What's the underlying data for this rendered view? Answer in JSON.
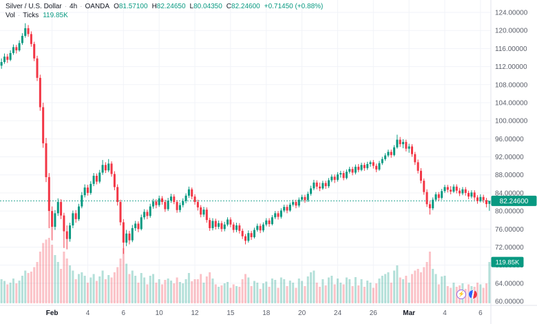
{
  "header": {
    "symbol": "Silver / U.S. Dollar",
    "dot": "·",
    "interval": "4h",
    "exchange": "OANDA",
    "o_label": "O",
    "h_label": "H",
    "l_label": "L",
    "c_label": "C",
    "open": "81.57100",
    "high": "82.24650",
    "low": "80.04350",
    "close": "82.24600",
    "change": "+0.71450 (+0.88%)",
    "vol_label": "Vol",
    "vol_type": "Ticks",
    "vol_value": "119.85K"
  },
  "colors": {
    "up": "#089981",
    "down": "#F23645",
    "vol_up": "rgba(8,153,129,0.30)",
    "vol_down": "rgba(242,54,69,0.30)",
    "grid": "#F1F3F8",
    "axis_line": "#E0E3EB",
    "axis_text": "#5A5E69",
    "text": "#131722",
    "badge": "#089981",
    "badge_text": "#FFFFFF"
  },
  "chart_data": {
    "type": "candlestick",
    "title": "Silver / U.S. Dollar · 4h · OANDA",
    "legend_ohlc": {
      "open": "81.57100",
      "high": "82.24650",
      "low": "80.04350",
      "close": "82.24600",
      "change": "+0.71450 (+0.88%)"
    },
    "price_axis": {
      "min": 60,
      "max": 124,
      "tick_step": 4,
      "ticks": [
        "124.00000",
        "120.00000",
        "116.00000",
        "112.00000",
        "108.00000",
        "104.00000",
        "100.00000",
        "96.00000",
        "92.00000",
        "88.00000",
        "84.00000",
        "80.00000",
        "76.00000",
        "72.00000",
        "68.00000",
        "64.00000",
        "60.00000"
      ]
    },
    "time_axis": {
      "labels": [
        {
          "text": "Feb",
          "i": 17,
          "major": true
        },
        {
          "text": "4",
          "i": 29
        },
        {
          "text": "6",
          "i": 41
        },
        {
          "text": "10",
          "i": 53
        },
        {
          "text": "12",
          "i": 65
        },
        {
          "text": "15",
          "i": 77
        },
        {
          "text": "18",
          "i": 89
        },
        {
          "text": "20",
          "i": 101
        },
        {
          "text": "24",
          "i": 113
        },
        {
          "text": "26",
          "i": 125
        },
        {
          "text": "Mar",
          "i": 137,
          "major": true
        },
        {
          "text": "4",
          "i": 149
        },
        {
          "text": "6",
          "i": 161
        }
      ]
    },
    "last_price": 82.246,
    "last_price_label": "82.24600",
    "last_volume_k": 119.85,
    "volume_badge_label": "119.85K",
    "candles_format": [
      "open",
      "high",
      "low",
      "close",
      "volume_k"
    ],
    "candles": [
      [
        112.2,
        113.8,
        111.5,
        113.0,
        70
      ],
      [
        113.0,
        114.9,
        112.6,
        114.2,
        65
      ],
      [
        114.2,
        114.8,
        112.8,
        113.5,
        55
      ],
      [
        113.5,
        115.6,
        113.2,
        115.0,
        60
      ],
      [
        115.0,
        116.9,
        114.6,
        116.3,
        72
      ],
      [
        116.3,
        116.8,
        114.9,
        115.6,
        58
      ],
      [
        115.6,
        117.8,
        115.3,
        117.2,
        66
      ],
      [
        117.2,
        119.4,
        116.8,
        118.8,
        80
      ],
      [
        118.8,
        121.6,
        118.4,
        120.5,
        95
      ],
      [
        120.5,
        121.2,
        118.6,
        119.2,
        88
      ],
      [
        119.2,
        119.8,
        116.4,
        117.0,
        92
      ],
      [
        117.0,
        117.5,
        113.2,
        113.8,
        105
      ],
      [
        113.8,
        114.4,
        108.8,
        109.5,
        120
      ],
      [
        109.5,
        110.2,
        102.2,
        103.0,
        150
      ],
      [
        103.0,
        104.0,
        94.0,
        95.0,
        175
      ],
      [
        95.0,
        96.2,
        86.4,
        87.5,
        185
      ],
      [
        87.5,
        88.4,
        76.2,
        80.0,
        190
      ],
      [
        80.0,
        81.0,
        73.5,
        76.5,
        170
      ],
      [
        76.5,
        80.2,
        75.8,
        79.5,
        140
      ],
      [
        79.5,
        82.8,
        78.9,
        82.0,
        120
      ],
      [
        82.0,
        82.6,
        78.2,
        79.0,
        100
      ],
      [
        79.0,
        79.6,
        71.8,
        75.5,
        150
      ],
      [
        75.5,
        76.8,
        71.5,
        73.8,
        130
      ],
      [
        73.8,
        77.4,
        73.2,
        76.8,
        110
      ],
      [
        76.8,
        80.1,
        76.2,
        79.5,
        95
      ],
      [
        79.5,
        80.2,
        77.4,
        78.2,
        70
      ],
      [
        78.2,
        81.6,
        77.8,
        81.0,
        85
      ],
      [
        81.0,
        84.2,
        80.6,
        83.5,
        90
      ],
      [
        83.5,
        85.9,
        83.0,
        85.2,
        80
      ],
      [
        85.2,
        85.8,
        83.4,
        84.0,
        60
      ],
      [
        84.0,
        86.6,
        83.6,
        86.0,
        75
      ],
      [
        86.0,
        88.4,
        85.5,
        87.8,
        85
      ],
      [
        87.8,
        88.3,
        85.9,
        86.5,
        65
      ],
      [
        86.5,
        89.1,
        86.1,
        88.5,
        78
      ],
      [
        88.5,
        91.3,
        88.0,
        90.2,
        95
      ],
      [
        90.2,
        90.8,
        88.4,
        89.0,
        70
      ],
      [
        89.0,
        91.5,
        88.6,
        90.5,
        82
      ],
      [
        90.5,
        91.0,
        87.6,
        88.2,
        75
      ],
      [
        88.2,
        88.8,
        84.6,
        85.3,
        90
      ],
      [
        85.3,
        85.9,
        81.2,
        82.0,
        105
      ],
      [
        82.0,
        82.5,
        76.8,
        77.5,
        130
      ],
      [
        77.5,
        78.2,
        70.5,
        73.0,
        160
      ],
      [
        73.0,
        75.8,
        72.2,
        75.0,
        115
      ],
      [
        75.0,
        75.6,
        72.6,
        73.5,
        85
      ],
      [
        73.5,
        76.9,
        73.1,
        76.2,
        95
      ],
      [
        76.2,
        77.8,
        75.6,
        77.2,
        80
      ],
      [
        77.2,
        77.7,
        75.3,
        76.0,
        60
      ],
      [
        76.0,
        79.2,
        75.7,
        78.6,
        88
      ],
      [
        78.6,
        80.4,
        78.1,
        79.8,
        75
      ],
      [
        79.8,
        80.3,
        78.2,
        78.9,
        55
      ],
      [
        78.9,
        81.6,
        78.5,
        81.0,
        80
      ],
      [
        81.0,
        82.7,
        80.5,
        82.1,
        85
      ],
      [
        82.1,
        82.6,
        80.6,
        81.3,
        60
      ],
      [
        81.3,
        83.4,
        80.9,
        82.8,
        70
      ],
      [
        82.8,
        83.3,
        81.4,
        82.0,
        55
      ],
      [
        82.0,
        82.5,
        79.8,
        80.4,
        68
      ],
      [
        80.4,
        82.9,
        80.0,
        82.3,
        72
      ],
      [
        82.3,
        83.8,
        81.8,
        83.2,
        66
      ],
      [
        83.2,
        83.7,
        81.5,
        82.0,
        58
      ],
      [
        82.0,
        82.4,
        79.6,
        80.2,
        75
      ],
      [
        80.2,
        81.9,
        79.7,
        81.3,
        62
      ],
      [
        81.3,
        82.8,
        80.8,
        82.2,
        58
      ],
      [
        82.2,
        83.9,
        81.7,
        83.4,
        70
      ],
      [
        83.4,
        85.4,
        82.9,
        84.8,
        88
      ],
      [
        84.8,
        85.2,
        82.6,
        83.2,
        64
      ],
      [
        83.2,
        83.7,
        81.4,
        82.0,
        70
      ],
      [
        82.0,
        82.5,
        80.1,
        80.8,
        70
      ],
      [
        80.8,
        81.3,
        78.6,
        79.2,
        85
      ],
      [
        79.2,
        80.9,
        78.7,
        80.3,
        60
      ],
      [
        80.3,
        80.8,
        77.4,
        78.0,
        78
      ],
      [
        78.0,
        78.5,
        75.6,
        76.2,
        90
      ],
      [
        76.2,
        78.4,
        75.7,
        77.8,
        72
      ],
      [
        77.8,
        78.3,
        75.9,
        76.5,
        55
      ],
      [
        76.5,
        77.9,
        76.0,
        77.3,
        48
      ],
      [
        77.3,
        77.8,
        75.4,
        76.0,
        52
      ],
      [
        76.0,
        77.6,
        75.5,
        77.0,
        58
      ],
      [
        77.0,
        78.6,
        76.6,
        78.1,
        62
      ],
      [
        78.1,
        78.6,
        76.4,
        77.0,
        45
      ],
      [
        77.0,
        77.5,
        75.2,
        75.8,
        55
      ],
      [
        75.8,
        77.4,
        75.3,
        76.8,
        50
      ],
      [
        76.8,
        77.3,
        75.0,
        75.6,
        48
      ],
      [
        75.6,
        76.1,
        73.8,
        74.4,
        70
      ],
      [
        74.4,
        74.9,
        72.6,
        73.4,
        85
      ],
      [
        73.4,
        75.7,
        73.0,
        75.1,
        75
      ],
      [
        75.1,
        75.6,
        73.6,
        74.2,
        50
      ],
      [
        74.2,
        76.3,
        73.9,
        75.8,
        65
      ],
      [
        75.8,
        77.2,
        75.4,
        76.7,
        60
      ],
      [
        76.7,
        77.2,
        75.1,
        75.7,
        42
      ],
      [
        75.7,
        77.5,
        75.3,
        77.0,
        58
      ],
      [
        77.0,
        78.4,
        76.6,
        77.9,
        63
      ],
      [
        77.9,
        78.4,
        76.5,
        77.1,
        48
      ],
      [
        77.1,
        79.1,
        76.8,
        78.6,
        72
      ],
      [
        78.6,
        80.0,
        78.2,
        79.5,
        68
      ],
      [
        79.5,
        80.0,
        78.1,
        78.7,
        45
      ],
      [
        78.7,
        80.6,
        78.3,
        80.1,
        75
      ],
      [
        80.1,
        81.4,
        79.7,
        80.9,
        70
      ],
      [
        80.9,
        81.4,
        79.5,
        80.1,
        50
      ],
      [
        80.1,
        81.9,
        79.8,
        81.4,
        66
      ],
      [
        81.4,
        82.5,
        81.0,
        82.0,
        60
      ],
      [
        82.0,
        82.5,
        80.6,
        81.2,
        45
      ],
      [
        81.2,
        83.0,
        80.8,
        82.5,
        72
      ],
      [
        82.5,
        83.6,
        82.1,
        83.1,
        65
      ],
      [
        83.1,
        83.6,
        81.8,
        82.4,
        50
      ],
      [
        82.4,
        84.3,
        82.0,
        83.8,
        78
      ],
      [
        83.8,
        85.6,
        83.4,
        85.0,
        90
      ],
      [
        85.0,
        86.9,
        84.6,
        86.3,
        95
      ],
      [
        86.3,
        86.8,
        84.8,
        85.4,
        60
      ],
      [
        85.4,
        86.3,
        84.4,
        85.0,
        48
      ],
      [
        85.0,
        86.7,
        84.7,
        86.2,
        70
      ],
      [
        86.2,
        86.7,
        84.9,
        85.5,
        52
      ],
      [
        85.5,
        87.3,
        85.1,
        86.8,
        75
      ],
      [
        86.8,
        88.1,
        86.4,
        87.6,
        80
      ],
      [
        87.6,
        88.1,
        86.2,
        86.9,
        55
      ],
      [
        86.9,
        88.6,
        86.5,
        88.1,
        72
      ],
      [
        88.1,
        88.9,
        87.4,
        88.4,
        60
      ],
      [
        88.4,
        88.9,
        86.8,
        87.3,
        55
      ],
      [
        87.3,
        89.2,
        87.0,
        88.7,
        75
      ],
      [
        88.7,
        89.8,
        88.3,
        89.3,
        70
      ],
      [
        89.3,
        89.8,
        87.9,
        88.5,
        50
      ],
      [
        88.5,
        90.3,
        88.1,
        89.8,
        76
      ],
      [
        89.8,
        90.4,
        88.6,
        89.1,
        52
      ],
      [
        89.1,
        90.7,
        88.8,
        90.2,
        70
      ],
      [
        90.2,
        90.7,
        88.9,
        89.5,
        48
      ],
      [
        89.5,
        90.9,
        89.1,
        90.4,
        66
      ],
      [
        90.4,
        91.2,
        89.8,
        90.8,
        60
      ],
      [
        90.8,
        91.3,
        89.4,
        90.0,
        45
      ],
      [
        90.0,
        90.5,
        88.6,
        89.2,
        58
      ],
      [
        89.2,
        91.1,
        88.9,
        90.6,
        72
      ],
      [
        90.6,
        92.0,
        90.2,
        91.5,
        80
      ],
      [
        91.5,
        92.8,
        91.1,
        92.3,
        85
      ],
      [
        92.3,
        93.6,
        91.9,
        93.1,
        90
      ],
      [
        93.1,
        93.6,
        91.8,
        92.4,
        60
      ],
      [
        92.4,
        94.6,
        92.1,
        94.1,
        95
      ],
      [
        94.1,
        96.9,
        93.8,
        95.8,
        110
      ],
      [
        95.8,
        96.4,
        94.2,
        94.8,
        75
      ],
      [
        94.8,
        95.9,
        93.9,
        95.3,
        70
      ],
      [
        95.3,
        95.8,
        93.2,
        93.8,
        80
      ],
      [
        93.8,
        94.9,
        92.9,
        94.3,
        60
      ],
      [
        94.3,
        94.8,
        92.0,
        92.6,
        85
      ],
      [
        92.6,
        93.1,
        90.2,
        90.8,
        95
      ],
      [
        90.8,
        91.4,
        88.3,
        88.9,
        100
      ],
      [
        88.9,
        89.5,
        86.1,
        86.7,
        90
      ],
      [
        86.7,
        87.2,
        83.6,
        84.2,
        105
      ],
      [
        84.2,
        84.8,
        80.9,
        81.5,
        120
      ],
      [
        81.5,
        82.1,
        79.2,
        80.6,
        150
      ],
      [
        80.6,
        83.0,
        80.2,
        82.5,
        100
      ],
      [
        82.5,
        84.2,
        82.1,
        83.7,
        85
      ],
      [
        83.7,
        84.2,
        82.3,
        82.9,
        55
      ],
      [
        82.9,
        84.9,
        82.5,
        84.4,
        78
      ],
      [
        84.4,
        85.8,
        84.0,
        85.3,
        80
      ],
      [
        85.3,
        85.8,
        84.1,
        84.7,
        50
      ],
      [
        84.7,
        85.5,
        83.7,
        84.3,
        45
      ],
      [
        84.3,
        85.9,
        84.0,
        85.4,
        60
      ],
      [
        85.4,
        85.9,
        83.9,
        84.5,
        48
      ],
      [
        84.5,
        85.1,
        83.3,
        83.9,
        52
      ],
      [
        83.9,
        85.3,
        83.5,
        84.8,
        58
      ],
      [
        84.8,
        85.3,
        83.4,
        84.0,
        42
      ],
      [
        84.0,
        84.5,
        82.6,
        83.2,
        55
      ],
      [
        83.2,
        84.6,
        82.8,
        84.1,
        50
      ],
      [
        84.1,
        84.6,
        82.4,
        83.0,
        48
      ],
      [
        83.0,
        83.5,
        81.6,
        82.2,
        60
      ],
      [
        82.2,
        83.7,
        81.9,
        83.1,
        55
      ],
      [
        83.1,
        83.6,
        81.8,
        82.4,
        45
      ],
      [
        82.4,
        82.9,
        80.8,
        81.53,
        58
      ],
      [
        81.571,
        82.247,
        80.044,
        82.246,
        119.85
      ]
    ]
  }
}
